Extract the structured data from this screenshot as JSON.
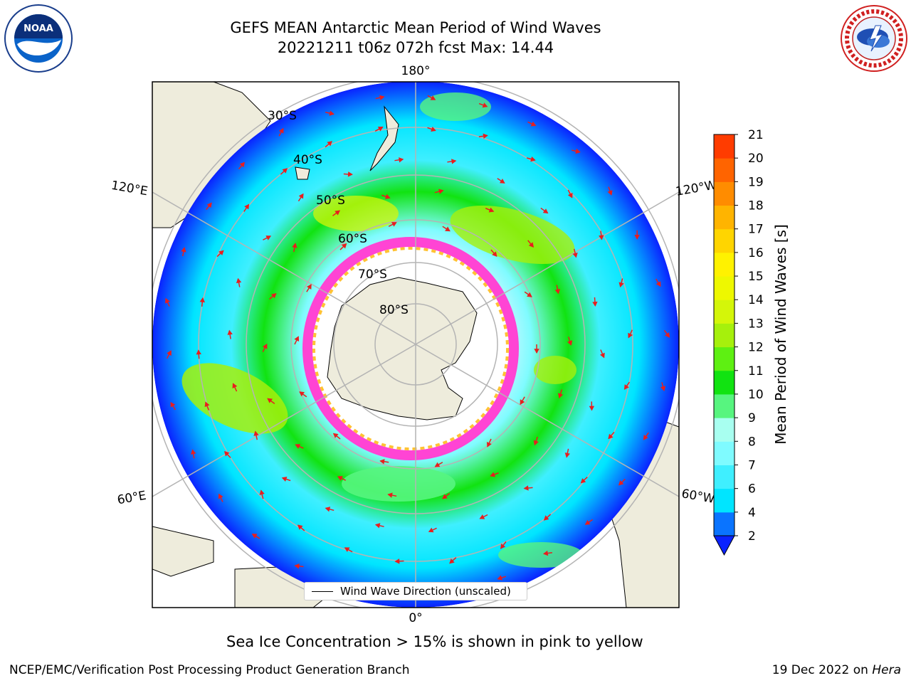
{
  "header": {
    "title_line1": "GEFS MEAN Antarctic Mean Period of Wind Waves",
    "title_line2": "20221211 t06z 072h fcst   Max: 14.44"
  },
  "logos": {
    "left": "noaa-logo",
    "right": "national-weather-service-logo"
  },
  "map": {
    "projection": "south-polar-stereographic",
    "longitude_labels": {
      "top": "180°",
      "left_upper": "120°E",
      "right_upper": "120°W",
      "left_lower": "60°E",
      "right_lower": "60°W",
      "bottom": "0°"
    },
    "latitude_labels": [
      "30°S",
      "40°S",
      "50°S",
      "60°S",
      "70°S",
      "80°S"
    ],
    "colors": {
      "land": "#eeecdc",
      "ocean_none": "#ffffff",
      "arrow": "#e81e1e",
      "grid": "#b4b4b4",
      "sea_ice_pink": "#ff44d4",
      "sea_ice_yellow": "#ffc233"
    }
  },
  "legend": {
    "label": "Wind Wave Direction (unscaled)",
    "line_color": "#000000"
  },
  "colorbar": {
    "label": "Mean Period of Wind Waves [s]",
    "ticks": [
      "2",
      "4",
      "6",
      "7",
      "8",
      "9",
      "10",
      "11",
      "12",
      "13",
      "14",
      "15",
      "16",
      "17",
      "18",
      "19",
      "20",
      "21"
    ],
    "colors": [
      "#0a74ff",
      "#00e5ff",
      "#3fefff",
      "#7ffbff",
      "#a8fff0",
      "#57f57f",
      "#11e311",
      "#5ef012",
      "#a6f00c",
      "#d4f609",
      "#eef800",
      "#fff200",
      "#ffd500",
      "#ffb400",
      "#ff8c00",
      "#ff6400",
      "#ff3c00",
      "#ff1400"
    ],
    "extend_color": "#0a22ff"
  },
  "caption": "Sea Ice Concentration > 15% is shown in pink to yellow",
  "footer": {
    "left": "NCEP/EMC/Verification Post Processing Product Generation Branch",
    "right_prefix": "19 Dec 2022 on ",
    "right_host": "Hera"
  }
}
